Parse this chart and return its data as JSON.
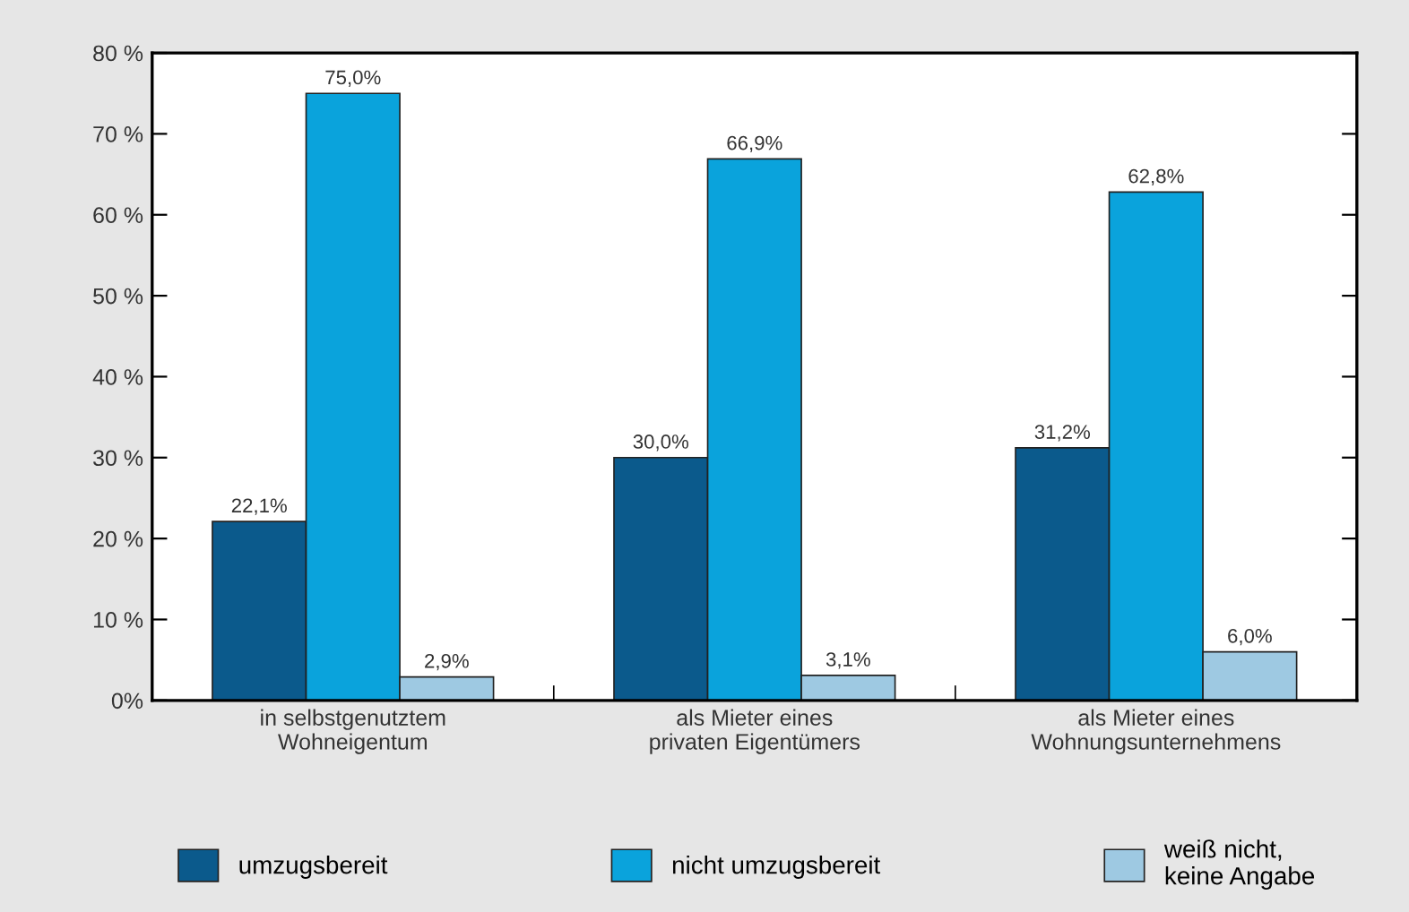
{
  "chart_data": {
    "type": "bar",
    "categories": [
      "in selbstgenutztem\nWohneigentum",
      "als Mieter eines\nprivaten Eigentümers",
      "als Mieter eines\nWohnungsunternehmens"
    ],
    "series": [
      {
        "name": "umzugsbereit",
        "color": "#0b5a8c",
        "values": [
          22.1,
          30.0,
          31.2
        ],
        "value_labels": [
          "22,1%",
          "30,0%",
          "31,2%"
        ]
      },
      {
        "name": "nicht umzugsbereit",
        "color": "#0aa3dc",
        "values": [
          75.0,
          66.9,
          62.8
        ],
        "value_labels": [
          "75,0%",
          "66,9%",
          "62,8%"
        ]
      },
      {
        "name": "weiß nicht,\nkeine Angabe",
        "color": "#9ec9e2",
        "values": [
          2.9,
          3.1,
          6.0
        ],
        "value_labels": [
          "2,9%",
          "3,1%",
          "6,0%"
        ]
      }
    ],
    "ylim": [
      0,
      80
    ],
    "yticks": [
      {
        "value": 0,
        "label": "0%"
      },
      {
        "value": 10,
        "label": "10 %"
      },
      {
        "value": 20,
        "label": "20 %"
      },
      {
        "value": 30,
        "label": "30 %"
      },
      {
        "value": 40,
        "label": "40 %"
      },
      {
        "value": 50,
        "label": "50 %"
      },
      {
        "value": 60,
        "label": "60 %"
      },
      {
        "value": 70,
        "label": "70 %"
      },
      {
        "value": 80,
        "label": "80 %"
      }
    ],
    "grid": false,
    "legend": "bottom"
  }
}
